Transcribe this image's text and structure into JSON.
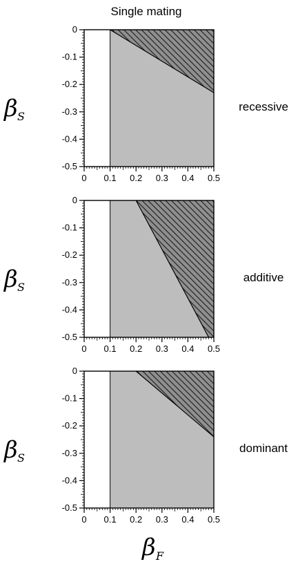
{
  "figure": {
    "title": "Single mating",
    "ylabel_symbol": "β",
    "ylabel_subscript": "S",
    "xlabel_symbol": "β",
    "xlabel_subscript": "F"
  },
  "colors": {
    "white_region": "#ffffff",
    "gray_region": "#bdbdbd",
    "hatched_region_bg": "#8f8f8f",
    "hatch_line": "#1a1a1a",
    "axis": "#000000"
  },
  "chart_data": [
    {
      "type": "area",
      "panel": "recessive",
      "label": "recessive",
      "xlim": [
        0,
        0.5
      ],
      "ylim": [
        -0.5,
        0
      ],
      "x_ticks": [
        "0",
        "0.1",
        "0.2",
        "0.3",
        "0.4",
        "0.5"
      ],
      "y_ticks": [
        "0",
        "-0.1",
        "-0.2",
        "-0.3",
        "-0.4",
        "-0.5"
      ],
      "white_region_x_max": 0.1,
      "hatched_boundary": [
        [
          0.1,
          0
        ],
        [
          0.5,
          -0.23
        ]
      ]
    },
    {
      "type": "area",
      "panel": "additive",
      "label": "additive",
      "xlim": [
        0,
        0.5
      ],
      "ylim": [
        -0.5,
        0
      ],
      "x_ticks": [
        "0",
        "0.1",
        "0.2",
        "0.3",
        "0.4",
        "0.5"
      ],
      "y_ticks": [
        "0",
        "-0.1",
        "-0.2",
        "-0.3",
        "-0.4",
        "-0.5"
      ],
      "white_region_x_max": 0.1,
      "hatched_boundary": [
        [
          0.2,
          0
        ],
        [
          0.48,
          -0.5
        ]
      ]
    },
    {
      "type": "area",
      "panel": "dominant",
      "label": "dominant",
      "xlim": [
        0,
        0.5
      ],
      "ylim": [
        -0.5,
        0
      ],
      "x_ticks": [
        "0",
        "0.1",
        "0.2",
        "0.3",
        "0.4",
        "0.5"
      ],
      "y_ticks": [
        "0",
        "-0.1",
        "-0.2",
        "-0.3",
        "-0.4",
        "-0.5"
      ],
      "white_region_x_max": 0.1,
      "hatched_boundary": [
        [
          0.2,
          0
        ],
        [
          0.5,
          -0.24
        ]
      ]
    }
  ]
}
